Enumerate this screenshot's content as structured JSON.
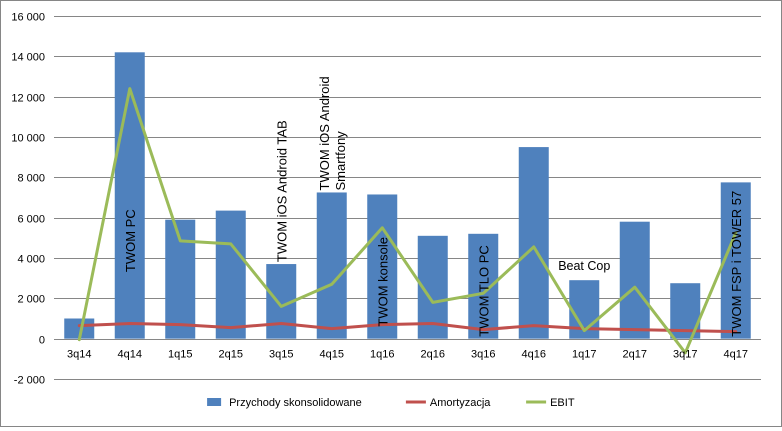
{
  "chart_data": {
    "type": "bar",
    "categories": [
      "3q14",
      "4q14",
      "1q15",
      "2q15",
      "3q15",
      "4q15",
      "1q16",
      "2q16",
      "3q16",
      "4q16",
      "1q17",
      "2q17",
      "3q17",
      "4q17"
    ],
    "series": [
      {
        "name": "Przychody skonsolidowane",
        "type": "bar",
        "color": "#4F81BD",
        "values": [
          1000,
          14200,
          5900,
          6350,
          3700,
          7250,
          7150,
          5100,
          5200,
          9500,
          2900,
          5800,
          2750,
          7750
        ]
      },
      {
        "name": "Amortyzacja",
        "type": "line",
        "color": "#C0504D",
        "values": [
          650,
          750,
          700,
          550,
          750,
          500,
          700,
          750,
          450,
          650,
          500,
          450,
          400,
          350
        ]
      },
      {
        "name": "EBIT",
        "type": "line",
        "color": "#9BBB59",
        "values": [
          -50,
          12400,
          4850,
          4700,
          1600,
          2700,
          5500,
          1800,
          2250,
          4550,
          400,
          2550,
          -700,
          5250
        ]
      }
    ],
    "ylim": [
      -2000,
      16000
    ],
    "yticks": [
      -2000,
      0,
      2000,
      4000,
      6000,
      8000,
      10000,
      12000,
      14000,
      16000
    ],
    "ytick_labels": [
      "-2 000",
      "0",
      "2 000",
      "4 000",
      "6 000",
      "8 000",
      "10 000",
      "12 000",
      "14 000",
      "16 000"
    ],
    "grid": true,
    "legend": "bottom",
    "annotations": [
      {
        "category_index": 1,
        "lines": [
          "TWOM PC"
        ],
        "rotated": true
      },
      {
        "category_index": 4,
        "lines": [
          "TWOM iOS Android TAB"
        ],
        "rotated": true
      },
      {
        "category_index": 5,
        "lines": [
          "TWOM iOS Android",
          "Smartfony"
        ],
        "rotated": true
      },
      {
        "category_index": 6,
        "lines": [
          "TWOM konsole"
        ],
        "rotated": true
      },
      {
        "category_index": 8,
        "lines": [
          "TWOM TLO  PC"
        ],
        "rotated": true
      },
      {
        "category_index": 10,
        "lines": [
          "Beat Cop"
        ],
        "rotated": false
      },
      {
        "category_index": 13,
        "lines": [
          "TWOM FSP i TOWER 57"
        ],
        "rotated": true
      }
    ],
    "gridline_color": "#868686",
    "annotation_color": "#000000",
    "annotation_on_bar_color": "#ffffff"
  }
}
